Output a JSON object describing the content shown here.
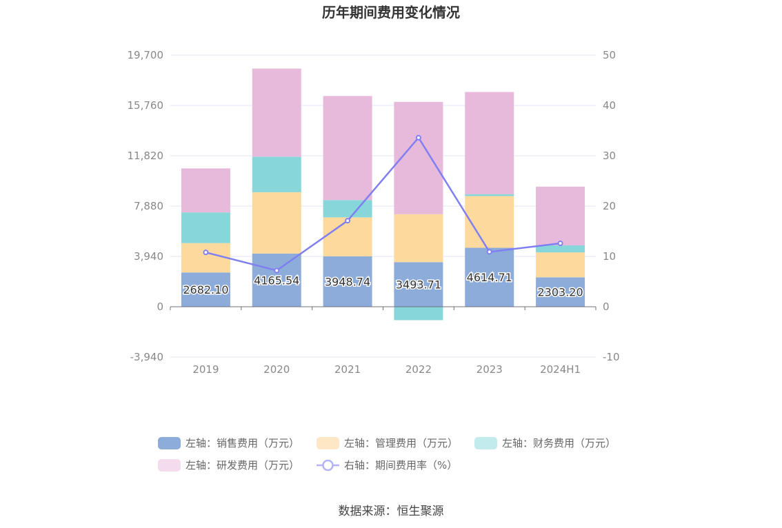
{
  "chart_data": {
    "type": "bar",
    "title": "历年期间费用变化情况",
    "categories": [
      "2019",
      "2020",
      "2021",
      "2022",
      "2023",
      "2024H1"
    ],
    "left_axis": {
      "ylim": [
        -3940,
        19700
      ],
      "ticks": [
        "19,700",
        "15,760",
        "11,820",
        "7,880",
        "3,940",
        "0",
        "-3,940"
      ],
      "tick_values": [
        19700,
        15760,
        11820,
        7880,
        3940,
        0,
        -3940
      ]
    },
    "right_axis": {
      "ylim": [
        -10,
        50
      ],
      "ticks": [
        "50",
        "40",
        "30",
        "20",
        "10",
        "0",
        "-10"
      ],
      "tick_values": [
        50,
        40,
        30,
        20,
        10,
        0,
        -10
      ]
    },
    "series": [
      {
        "name": "左轴：销售费用（万元）",
        "axis": "left",
        "stack": true,
        "color": "#8eacda",
        "legend_color": "#8eacda",
        "values": [
          2682.1,
          4165.54,
          3948.74,
          3493.71,
          4614.71,
          2303.2
        ],
        "labels": [
          "2682.10",
          "4165.54",
          "3948.74",
          "3493.71",
          "4614.71",
          "2303.20"
        ]
      },
      {
        "name": "左轴：管理费用（万元）",
        "axis": "left",
        "stack": true,
        "color": "#fdd99d",
        "legend_color": "#fde7c5",
        "values": [
          2300,
          4800,
          3050,
          3750,
          4050,
          1950
        ]
      },
      {
        "name": "左轴：财务费用（万元）",
        "axis": "left",
        "stack": true,
        "color": "#87d6da",
        "legend_color": "#c2ebed",
        "values": [
          2400,
          2780,
          1350,
          -1050,
          150,
          550
        ]
      },
      {
        "name": "左轴：研发费用（万元）",
        "axis": "left",
        "stack": true,
        "color": "#e7b9da",
        "legend_color": "#f4dced",
        "values": [
          3450,
          6900,
          8150,
          8800,
          8000,
          4600
        ]
      },
      {
        "name": "右轴：期间费用率（%）",
        "axis": "right",
        "type": "line",
        "color": "#7f7ff2",
        "legend_color": "#b3b3f5",
        "values": [
          10.8,
          7.2,
          17.1,
          33.6,
          10.9,
          12.6
        ]
      }
    ],
    "legend_position": "bottom",
    "grid": true
  },
  "footer": {
    "source": "数据来源：恒生聚源"
  }
}
